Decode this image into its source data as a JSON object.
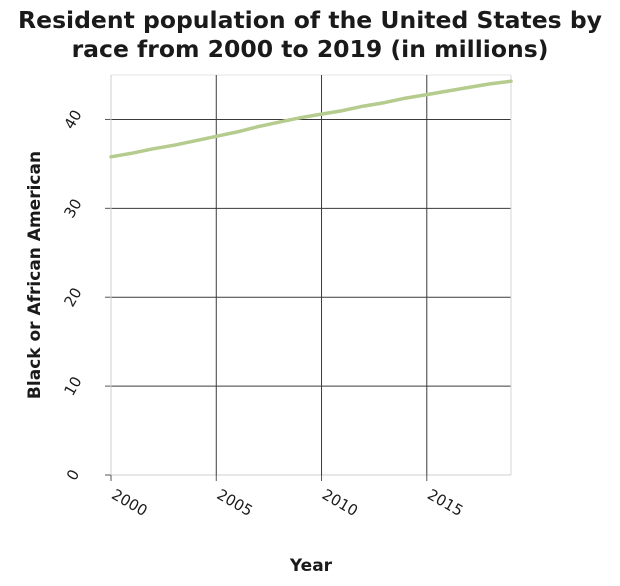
{
  "chart_data": {
    "type": "line",
    "title": "Resident population of the United States by race from 2000 to 2019 (in millions)",
    "xlabel": "Year",
    "ylabel": "Black or African American",
    "xlim": [
      2000,
      2019
    ],
    "ylim": [
      0,
      45
    ],
    "x_ticks": [
      2000,
      2005,
      2010,
      2015
    ],
    "y_ticks": [
      0,
      10,
      20,
      30,
      40
    ],
    "grid": true,
    "legend": "none",
    "series": [
      {
        "color": "#b5cc8e",
        "x": [
          2000,
          2001,
          2002,
          2003,
          2004,
          2005,
          2006,
          2007,
          2008,
          2009,
          2010,
          2011,
          2012,
          2013,
          2014,
          2015,
          2016,
          2017,
          2018,
          2019
        ],
        "values": [
          35.8,
          36.2,
          36.7,
          37.1,
          37.6,
          38.1,
          38.6,
          39.2,
          39.7,
          40.2,
          40.6,
          41.0,
          41.5,
          41.9,
          42.4,
          42.8,
          43.2,
          43.6,
          44.0,
          44.3
        ]
      }
    ]
  }
}
